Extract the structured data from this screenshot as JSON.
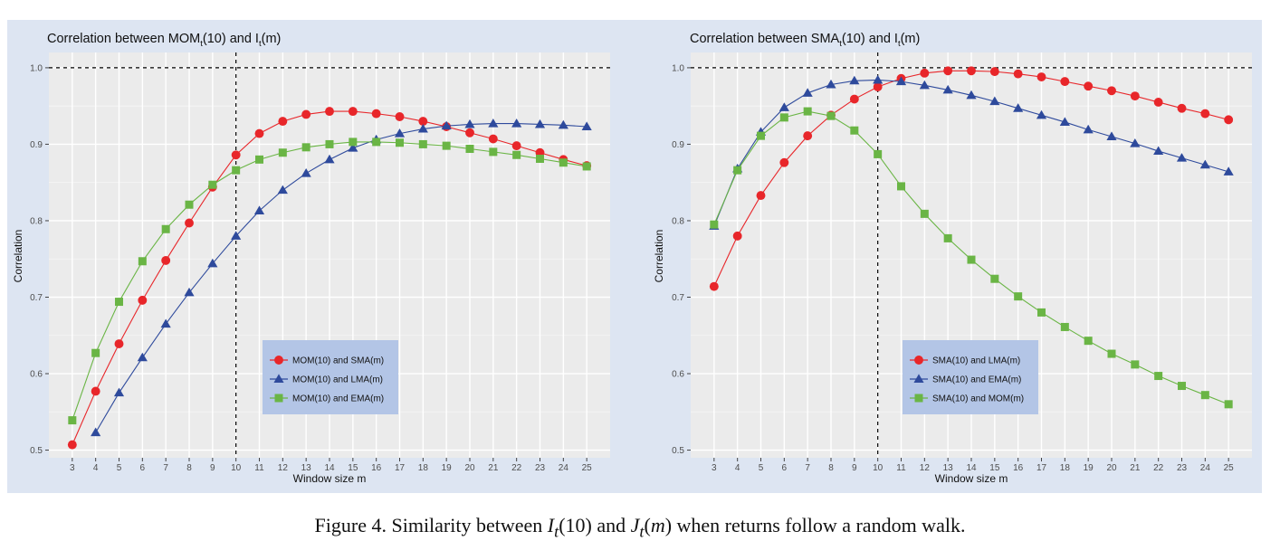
{
  "chart_data": [
    {
      "type": "line",
      "title": "Correlation between MOM",
      "title_sub": "t",
      "title_mid": "(10) and I",
      "title_sub2": "t",
      "title_end": "(m)",
      "xlabel": "Window size m",
      "ylabel": "Correlation",
      "x": [
        3,
        4,
        5,
        6,
        7,
        8,
        9,
        10,
        11,
        12,
        13,
        14,
        15,
        16,
        17,
        18,
        19,
        20,
        21,
        22,
        23,
        24,
        25
      ],
      "xlim": [
        2.0,
        26.0
      ],
      "ylim": [
        0.49,
        1.02
      ],
      "yticks": [
        0.5,
        0.6,
        0.7,
        0.8,
        0.9,
        1.0
      ],
      "ytick_labels": [
        "0.5",
        "0.6",
        "0.7",
        "0.8",
        "0.9",
        "1.0"
      ],
      "hline": 1.0,
      "vline": 10,
      "grid": true,
      "legend_position": "lower-right-center",
      "series": [
        {
          "name": "MOM(10) and SMA(m)",
          "color": "#e8262a",
          "marker": "circle",
          "x": [
            3,
            4,
            5,
            6,
            7,
            8,
            9,
            10,
            11,
            12,
            13,
            14,
            15,
            16,
            17,
            18,
            19,
            20,
            21,
            22,
            23,
            24,
            25
          ],
          "values": [
            0.507,
            0.577,
            0.639,
            0.696,
            0.748,
            0.797,
            0.844,
            0.886,
            0.914,
            0.93,
            0.939,
            0.943,
            0.943,
            0.94,
            0.936,
            0.93,
            0.923,
            0.915,
            0.907,
            0.898,
            0.889,
            0.88,
            0.872
          ]
        },
        {
          "name": "MOM(10) and LMA(m)",
          "color": "#2e4a9c",
          "marker": "triangle",
          "x": [
            4,
            5,
            6,
            7,
            8,
            9,
            10,
            11,
            12,
            13,
            14,
            15,
            16,
            17,
            18,
            19,
            20,
            21,
            22,
            23,
            24,
            25
          ],
          "values": [
            0.523,
            0.575,
            0.621,
            0.665,
            0.706,
            0.744,
            0.78,
            0.813,
            0.84,
            0.862,
            0.88,
            0.895,
            0.906,
            0.914,
            0.92,
            0.924,
            0.926,
            0.927,
            0.927,
            0.926,
            0.925,
            0.923
          ]
        },
        {
          "name": "MOM(10) and EMA(m)",
          "color": "#6ab545",
          "marker": "square",
          "x": [
            3,
            4,
            5,
            6,
            7,
            8,
            9,
            10,
            11,
            12,
            13,
            14,
            15,
            16,
            17,
            18,
            19,
            20,
            21,
            22,
            23,
            24,
            25
          ],
          "values": [
            0.539,
            0.627,
            0.694,
            0.747,
            0.789,
            0.821,
            0.847,
            0.866,
            0.88,
            0.889,
            0.896,
            0.9,
            0.903,
            0.903,
            0.902,
            0.9,
            0.898,
            0.894,
            0.89,
            0.886,
            0.881,
            0.876,
            0.871
          ]
        }
      ]
    },
    {
      "type": "line",
      "title": "Correlation between SMA",
      "title_sub": "t",
      "title_mid": "(10) and I",
      "title_sub2": "t",
      "title_end": "(m)",
      "xlabel": "Window size m",
      "ylabel": "Correlation",
      "x": [
        3,
        4,
        5,
        6,
        7,
        8,
        9,
        10,
        11,
        12,
        13,
        14,
        15,
        16,
        17,
        18,
        19,
        20,
        21,
        22,
        23,
        24,
        25
      ],
      "xlim": [
        2.0,
        26.0
      ],
      "ylim": [
        0.49,
        1.02
      ],
      "yticks": [
        0.5,
        0.6,
        0.7,
        0.8,
        0.9,
        1.0
      ],
      "ytick_labels": [
        "0.5",
        "0.6",
        "0.7",
        "0.8",
        "0.9",
        "1.0"
      ],
      "hline": 1.0,
      "vline": 10,
      "grid": true,
      "legend_position": "lower-center",
      "series": [
        {
          "name": "SMA(10) and LMA(m)",
          "color": "#e8262a",
          "marker": "circle",
          "x": [
            3,
            4,
            5,
            6,
            7,
            8,
            9,
            10,
            11,
            12,
            13,
            14,
            15,
            16,
            17,
            18,
            19,
            20,
            21,
            22,
            23,
            24,
            25
          ],
          "values": [
            0.714,
            0.78,
            0.833,
            0.876,
            0.911,
            0.938,
            0.959,
            0.975,
            0.986,
            0.993,
            0.996,
            0.996,
            0.995,
            0.992,
            0.988,
            0.982,
            0.976,
            0.97,
            0.963,
            0.955,
            0.947,
            0.94,
            0.932
          ]
        },
        {
          "name": "SMA(10) and EMA(m)",
          "color": "#2e4a9c",
          "marker": "triangle",
          "x": [
            3,
            4,
            5,
            6,
            7,
            8,
            9,
            10,
            11,
            12,
            13,
            14,
            15,
            16,
            17,
            18,
            19,
            20,
            21,
            22,
            23,
            24,
            25
          ],
          "values": [
            0.793,
            0.868,
            0.916,
            0.948,
            0.967,
            0.978,
            0.983,
            0.984,
            0.982,
            0.977,
            0.971,
            0.964,
            0.956,
            0.947,
            0.938,
            0.929,
            0.919,
            0.91,
            0.901,
            0.891,
            0.882,
            0.873,
            0.864
          ]
        },
        {
          "name": "SMA(10) and MOM(m)",
          "color": "#6ab545",
          "marker": "square",
          "x": [
            3,
            4,
            5,
            6,
            7,
            8,
            9,
            10,
            11,
            12,
            13,
            14,
            15,
            16,
            17,
            18,
            19,
            20,
            21,
            22,
            23,
            24,
            25
          ],
          "values": [
            0.795,
            0.866,
            0.911,
            0.935,
            0.943,
            0.937,
            0.918,
            0.887,
            0.845,
            0.809,
            0.777,
            0.749,
            0.724,
            0.701,
            0.68,
            0.661,
            0.643,
            0.626,
            0.612,
            0.597,
            0.584,
            0.572,
            0.56
          ]
        }
      ]
    }
  ],
  "caption": {
    "prefix": "Figure 4.  Similarity between ",
    "v1": "I",
    "s1": "t",
    "a1": "(10) and ",
    "v2": "J",
    "s2": "t",
    "a2": "(",
    "v3": "m",
    "a3": ") when returns follow a random walk."
  }
}
